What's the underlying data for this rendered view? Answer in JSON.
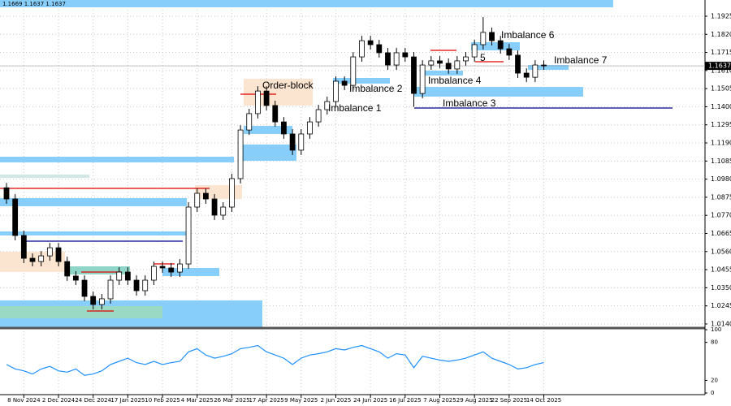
{
  "chart_data": [
    {
      "type": "candlestick",
      "info": "1.1669 1.1637 1.1637",
      "open": [
        1.093,
        1.0865,
        1.0653,
        1.0521,
        1.0502,
        1.0535,
        1.0582,
        1.0502,
        1.0418,
        1.0394,
        1.03,
        1.0253,
        1.0286,
        1.0394,
        1.0441,
        1.0394,
        1.0333,
        1.0394,
        1.0474,
        1.0465,
        1.0441,
        1.0488,
        1.0818,
        1.0898,
        1.0865,
        1.0771,
        1.0818,
        1.0983,
        1.1265,
        1.136,
        1.1491,
        1.1407,
        1.1312,
        1.1242,
        1.1148,
        1.1242,
        1.1312,
        1.1383,
        1.143,
        1.1548,
        1.1524,
        1.1689,
        1.1783,
        1.176,
        1.1713,
        1.1642,
        1.1713,
        1.1689,
        1.1477,
        1.1642,
        1.1666,
        1.1652,
        1.1619,
        1.1666,
        1.1689,
        1.176,
        1.1831,
        1.1783,
        1.1736,
        1.1699,
        1.1595,
        1.1571,
        1.1642
      ],
      "high": [
        1.0958,
        1.0893,
        1.0681,
        1.0549,
        1.0563,
        1.061,
        1.061,
        1.053,
        1.0446,
        1.0422,
        1.0328,
        1.0314,
        1.0422,
        1.0469,
        1.0469,
        1.0422,
        1.0422,
        1.0502,
        1.0502,
        1.0493,
        1.0516,
        1.0846,
        1.0926,
        1.0926,
        1.0893,
        1.0846,
        1.1011,
        1.1293,
        1.1388,
        1.1519,
        1.1519,
        1.1435,
        1.134,
        1.127,
        1.127,
        1.134,
        1.1411,
        1.1458,
        1.1576,
        1.1576,
        1.1717,
        1.1811,
        1.1811,
        1.1788,
        1.1741,
        1.1741,
        1.1741,
        1.1717,
        1.167,
        1.1694,
        1.1694,
        1.168,
        1.1694,
        1.1717,
        1.1788,
        1.192,
        1.1859,
        1.1811,
        1.1764,
        1.1727,
        1.1623,
        1.167,
        1.1669
      ],
      "low": [
        1.0837,
        1.0625,
        1.0493,
        1.0474,
        1.0474,
        1.0507,
        1.0474,
        1.039,
        1.0366,
        1.0272,
        1.0225,
        1.0225,
        1.0258,
        1.0366,
        1.0366,
        1.0305,
        1.0305,
        1.0366,
        1.0437,
        1.0413,
        1.0413,
        1.046,
        1.079,
        1.0837,
        1.0743,
        1.0743,
        1.079,
        1.0955,
        1.1237,
        1.1332,
        1.1379,
        1.1284,
        1.1214,
        1.112,
        1.112,
        1.1214,
        1.1284,
        1.1355,
        1.1402,
        1.1496,
        1.1496,
        1.1661,
        1.1732,
        1.1685,
        1.1614,
        1.1614,
        1.1661,
        1.14,
        1.1449,
        1.1614,
        1.1624,
        1.1591,
        1.1591,
        1.1638,
        1.1661,
        1.1732,
        1.1755,
        1.1708,
        1.1671,
        1.1567,
        1.1543,
        1.1543,
        1.1614
      ],
      "close": [
        1.0865,
        1.0653,
        1.0521,
        1.0502,
        1.0535,
        1.0582,
        1.0502,
        1.0418,
        1.0394,
        1.03,
        1.0253,
        1.0286,
        1.0394,
        1.0441,
        1.0394,
        1.0333,
        1.0394,
        1.0474,
        1.0465,
        1.0441,
        1.0488,
        1.0818,
        1.0898,
        1.0865,
        1.0771,
        1.0818,
        1.0983,
        1.1265,
        1.136,
        1.1491,
        1.1407,
        1.1312,
        1.1242,
        1.1148,
        1.1242,
        1.1312,
        1.1383,
        1.143,
        1.1548,
        1.1524,
        1.1689,
        1.1783,
        1.176,
        1.1713,
        1.1642,
        1.1713,
        1.1689,
        1.1477,
        1.1642,
        1.1666,
        1.1652,
        1.1619,
        1.1666,
        1.1689,
        1.176,
        1.1831,
        1.1783,
        1.1736,
        1.1699,
        1.1595,
        1.1571,
        1.1642,
        1.1637
      ],
      "up_color": "#ffffff",
      "down_color": "#000000",
      "ylim": [
        1.0121,
        1.2019
      ],
      "yticks": [
        1.1925,
        {
          "value": 1.182,
          "label": "1.1820"
        },
        1.1715,
        {
          "value": 1.161,
          "label": "1.1610"
        },
        1.1505,
        {
          "value": 1.14,
          "label": "1.1400"
        },
        1.1295,
        {
          "value": 1.119,
          "label": "1.1190"
        },
        1.1085,
        {
          "value": 1.098,
          "label": "1.0980"
        },
        1.0875,
        {
          "value": 1.077,
          "label": "1.0770"
        },
        1.0665,
        {
          "value": 1.056,
          "label": "1.0560"
        },
        1.0455,
        {
          "value": 1.035,
          "label": "1.0350"
        },
        1.0245,
        {
          "value": 1.014,
          "label": "1.0140"
        }
      ],
      "xticks": [
        {
          "value": 2,
          "label": "8 Nov 2024"
        },
        {
          "value": 6,
          "label": "2 Dec 2024"
        },
        {
          "value": 10,
          "label": "24 Dec 2024"
        },
        {
          "value": 14,
          "label": "17 Jan 2025"
        },
        {
          "value": 18,
          "label": "10 Feb 2025"
        },
        {
          "value": 22,
          "label": "4 Mar 2025"
        },
        {
          "value": 26,
          "label": "26 Mar 2025"
        },
        {
          "value": 30,
          "label": "17 Apr 2025"
        },
        {
          "value": 34,
          "label": "9 May 2025"
        },
        {
          "value": 38,
          "label": "2 Jun 2025"
        },
        {
          "value": 42,
          "label": "24 Jun 2025"
        },
        {
          "value": 46,
          "label": "16 Jul 2025"
        },
        {
          "value": 50,
          "label": "7 Aug 2025"
        },
        {
          "value": 54,
          "label": "29 Aug 2025"
        },
        {
          "value": 58,
          "label": "22 Sep 2025"
        },
        {
          "value": 62,
          "label": "14 Oct 2025"
        }
      ],
      "grid": true,
      "annotations": [
        "Order-block",
        "Imbalance 1",
        "Imbalance 2",
        "Imbalance 3",
        "Imbalance 4",
        "5",
        "Imbalance 6",
        "Imbalance 7"
      ]
    },
    {
      "type": "line",
      "color": "#1e90ff",
      "values": [
        45,
        38,
        35,
        30,
        38,
        42,
        35,
        33,
        38,
        28,
        30,
        35,
        45,
        50,
        55,
        48,
        45,
        50,
        45,
        48,
        50,
        65,
        70,
        60,
        55,
        58,
        62,
        70,
        72,
        75,
        65,
        60,
        55,
        45,
        55,
        60,
        62,
        65,
        70,
        68,
        72,
        75,
        70,
        65,
        55,
        62,
        60,
        40,
        58,
        55,
        52,
        50,
        52,
        55,
        60,
        65,
        55,
        50,
        45,
        38,
        40,
        45,
        48
      ],
      "ylim": [
        0,
        100
      ],
      "yticks": [
        100,
        80,
        20,
        0
      ]
    }
  ]
}
